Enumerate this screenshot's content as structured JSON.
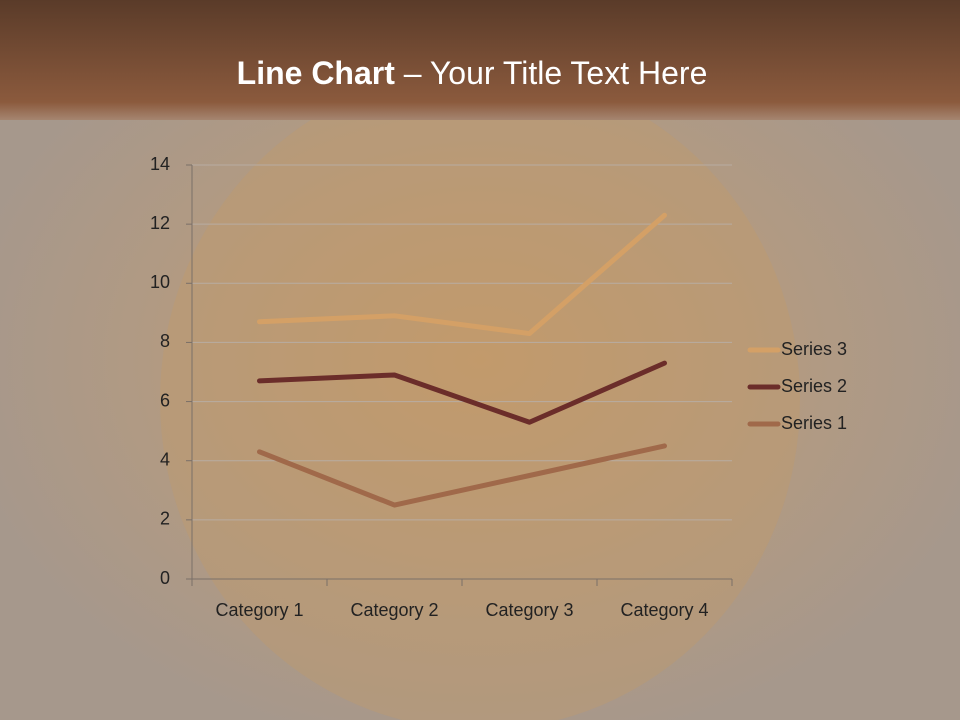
{
  "chart_data": {
    "type": "line",
    "stacked": true,
    "title": {
      "bold": "Line Chart",
      "rest": "– Your Title Text Here"
    },
    "categories": [
      "Category 1",
      "Category 2",
      "Category 3",
      "Category 4"
    ],
    "series": [
      {
        "name": "Series 1",
        "color": "#a0694a",
        "values": [
          4.3,
          2.5,
          3.5,
          4.5
        ]
      },
      {
        "name": "Series 2",
        "color": "#6b2d2a",
        "values": [
          2.4,
          4.4,
          1.8,
          2.8
        ]
      },
      {
        "name": "Series 3",
        "color": "#d4a066",
        "values": [
          2,
          2,
          3,
          5
        ]
      }
    ],
    "ylim": [
      0,
      14
    ],
    "yticks": [
      0,
      2,
      4,
      6,
      8,
      10,
      12,
      14
    ],
    "grid": true,
    "legend": "right"
  }
}
